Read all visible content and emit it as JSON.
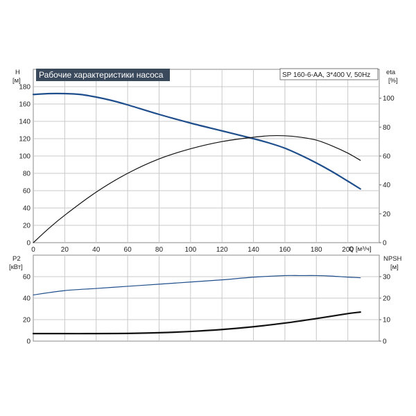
{
  "chart_data": [
    {
      "type": "line",
      "title": "Рабочие характеристики насоса",
      "model_label": "SP 160-6-AA, 3*400 V, 50Hz",
      "left_axis_label": "H",
      "left_axis_unit": "[м]",
      "right_axis_label": "eta",
      "right_axis_unit": "[%]",
      "xlabel": "Q [м³/ч]",
      "xlim": [
        0,
        220
      ],
      "ylim_left": [
        0,
        200
      ],
      "ylim_right": [
        0,
        120
      ],
      "x_ticks": [
        "0",
        "20",
        "40",
        "60",
        "80",
        "100",
        "120",
        "140",
        "160",
        "180",
        "200"
      ],
      "left_ticks": [
        "0",
        "20",
        "40",
        "60",
        "80",
        "100",
        "120",
        "140",
        "160",
        "180"
      ],
      "right_ticks": [
        "0",
        "20",
        "40",
        "60",
        "80",
        "100"
      ],
      "grid": true,
      "series": [
        {
          "name": "H",
          "axis": "left",
          "color": "#1f4e8c",
          "x": [
            0,
            10,
            20,
            30,
            40,
            50,
            60,
            80,
            100,
            120,
            140,
            150,
            160,
            170,
            180,
            190,
            200,
            208
          ],
          "y": [
            171,
            172,
            172,
            171,
            168,
            164,
            159,
            148,
            138,
            129,
            120,
            115,
            109,
            101,
            92,
            82,
            71,
            62
          ]
        },
        {
          "name": "eta",
          "axis": "right",
          "color": "#111111",
          "x": [
            0,
            10,
            20,
            40,
            60,
            80,
            100,
            120,
            140,
            150,
            160,
            170,
            180,
            190,
            200,
            208
          ],
          "y": [
            0,
            10,
            19,
            35,
            48,
            58,
            65,
            70,
            73,
            74,
            74,
            73,
            71,
            67,
            62,
            57
          ]
        }
      ]
    },
    {
      "type": "line",
      "left_axis_label": "P2",
      "left_axis_unit": "[кВт]",
      "right_axis_label": "NPSH",
      "right_axis_unit": "[м]",
      "xlim": [
        0,
        220
      ],
      "ylim_left": [
        0,
        80
      ],
      "ylim_right": [
        0,
        40
      ],
      "left_ticks": [
        "0",
        "20",
        "40",
        "60"
      ],
      "right_ticks": [
        "0",
        "10",
        "20",
        "30"
      ],
      "grid": true,
      "series": [
        {
          "name": "P2",
          "axis": "left",
          "color": "#1f4e8c",
          "x": [
            0,
            20,
            40,
            60,
            80,
            100,
            120,
            140,
            160,
            170,
            180,
            190,
            200,
            208
          ],
          "y": [
            43,
            47,
            49,
            51,
            53,
            55,
            57,
            59.5,
            61,
            61,
            61,
            60.5,
            59.5,
            59
          ]
        },
        {
          "name": "NPSH",
          "axis": "right",
          "color": "#111111",
          "x": [
            0,
            15,
            40,
            60,
            80,
            100,
            120,
            140,
            160,
            180,
            200,
            208
          ],
          "y": [
            3.5,
            3.5,
            3.5,
            3.6,
            3.9,
            4.5,
            5.4,
            6.7,
            8.4,
            10.5,
            12.8,
            13.5
          ]
        }
      ]
    }
  ]
}
